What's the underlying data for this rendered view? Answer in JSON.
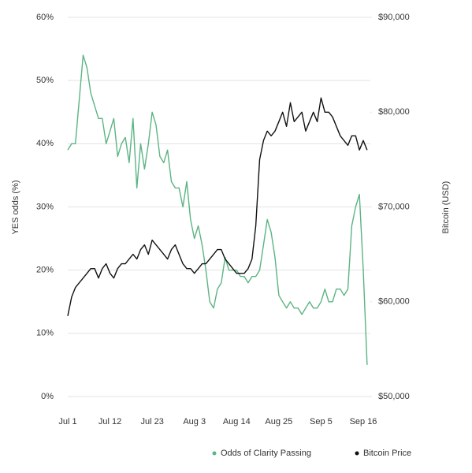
{
  "chart_data": {
    "type": "line",
    "y_label": "YES odds (%)",
    "y2_label": "Bitcoin (USD)",
    "categories": [
      "Jul 1",
      null,
      null,
      null,
      null,
      null,
      null,
      null,
      null,
      null,
      null,
      "Jul 12",
      null,
      null,
      null,
      null,
      null,
      null,
      null,
      null,
      null,
      null,
      "Jul 23",
      null,
      null,
      null,
      null,
      null,
      null,
      null,
      null,
      null,
      null,
      "Aug 3",
      null,
      null,
      null,
      null,
      null,
      null,
      null,
      null,
      null,
      null,
      "Aug 14",
      null,
      null,
      null,
      null,
      null,
      null,
      null,
      null,
      null,
      null,
      "Aug 25",
      null,
      null,
      null,
      null,
      null,
      null,
      null,
      null,
      null,
      null,
      "Sep 5",
      null,
      null,
      null,
      null,
      null,
      null,
      null,
      null,
      null,
      null,
      "Sep 16",
      null
    ],
    "series": [
      {
        "name": "Odds of Clarity Passing",
        "color": "#5bb483",
        "axis": "y",
        "values": [
          39,
          40,
          40,
          47,
          54,
          52,
          48,
          46,
          44,
          44,
          40,
          42,
          44,
          38,
          40,
          41,
          37,
          44,
          33,
          40,
          36,
          40,
          45,
          43,
          38,
          37,
          39,
          34,
          33,
          33,
          30,
          34,
          28,
          25,
          27,
          24,
          20,
          15,
          14,
          17,
          18,
          22,
          20,
          20,
          20,
          19,
          19,
          18,
          19,
          19,
          20,
          24,
          28,
          26,
          22,
          16,
          15,
          14,
          15,
          14,
          14,
          13,
          14,
          15,
          14,
          14,
          15,
          17,
          15,
          15,
          17,
          17,
          16,
          17,
          27,
          30,
          32,
          20,
          5
        ]
      },
      {
        "name": "Bitcoin Price",
        "color": "#111111",
        "axis": "y2",
        "values": [
          58500,
          60500,
          61500,
          62000,
          62500,
          63000,
          63500,
          63500,
          62500,
          63500,
          64000,
          63000,
          62500,
          63500,
          64000,
          64000,
          64500,
          65000,
          64500,
          65500,
          66000,
          65000,
          66500,
          66000,
          65500,
          65000,
          64500,
          65500,
          66000,
          65000,
          64000,
          63500,
          63500,
          63000,
          63500,
          64000,
          64000,
          64500,
          65000,
          65500,
          65500,
          64500,
          64000,
          63500,
          63000,
          63000,
          63000,
          63500,
          64500,
          68000,
          75000,
          77000,
          78000,
          77500,
          78000,
          79000,
          80000,
          78500,
          81000,
          79000,
          79500,
          80000,
          78000,
          79000,
          80000,
          79000,
          81500,
          80000,
          80000,
          79500,
          78500,
          77500,
          77000,
          76500,
          77500,
          77500,
          76000,
          77000,
          76000
        ]
      }
    ],
    "ylim": [
      0,
      60
    ],
    "yticks": [
      {
        "value": 0,
        "label": "0%"
      },
      {
        "value": 10,
        "label": "10%"
      },
      {
        "value": 20,
        "label": "20%"
      },
      {
        "value": 30,
        "label": "30%"
      },
      {
        "value": 40,
        "label": "40%"
      },
      {
        "value": 50,
        "label": "50%"
      },
      {
        "value": 60,
        "label": "60%"
      }
    ],
    "y2lim": [
      50000,
      90000
    ],
    "y2ticks": [
      {
        "value": 50000,
        "label": "$50,000"
      },
      {
        "value": 60000,
        "label": "$60,000"
      },
      {
        "value": 70000,
        "label": "$70,000"
      },
      {
        "value": 80000,
        "label": "$80,000"
      },
      {
        "value": 90000,
        "label": "$90,000"
      }
    ],
    "grid": true
  }
}
